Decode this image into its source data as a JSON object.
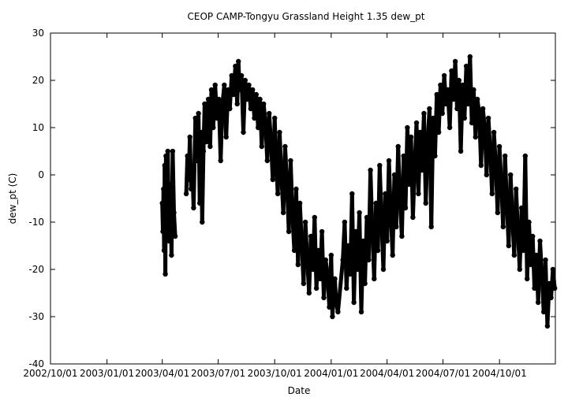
{
  "chart_data": {
    "type": "scatter",
    "title": "CEOP CAMP-Tongyu Grassland Height 1.35 dew_pt",
    "xlabel": "Date",
    "ylabel": "dew_pt (C)",
    "xlim": [
      "2002-10-01",
      "2004-12-31"
    ],
    "ylim": [
      -40,
      30
    ],
    "x_tick_labels": [
      "2002/10/01",
      "2003/01/01",
      "2003/04/01",
      "2003/07/01",
      "2003/10/01",
      "2004/01/01",
      "2004/04/01",
      "2004/07/01",
      "2004/10/01"
    ],
    "y_tick_labels": [
      "-40",
      "-30",
      "-20",
      "-10",
      "0",
      "10",
      "20",
      "30"
    ],
    "grid": false,
    "legend": "none",
    "marker_color": "#000000",
    "series": [
      {
        "points": [
          [
            "2003-04-01",
            -6
          ],
          [
            "2003-04-02",
            -12
          ],
          [
            "2003-04-03",
            -3
          ],
          [
            "2003-04-04",
            -16
          ],
          [
            "2003-04-05",
            2
          ],
          [
            "2003-04-06",
            -21
          ],
          [
            "2003-04-07",
            4
          ],
          [
            "2003-04-08",
            -9
          ],
          [
            "2003-04-10",
            5
          ],
          [
            "2003-04-12",
            -14
          ],
          [
            "2003-04-14",
            -2
          ],
          [
            "2003-04-16",
            -17
          ],
          [
            "2003-04-18",
            5
          ],
          [
            "2003-04-20",
            -8
          ],
          [
            "2003-04-22",
            -13
          ],
          [
            "2003-05-10",
            -4
          ],
          [
            "2003-05-12",
            4
          ],
          [
            "2003-05-14",
            -1
          ],
          [
            "2003-05-16",
            8
          ],
          [
            "2003-05-18",
            -3
          ],
          [
            "2003-05-20",
            1
          ],
          [
            "2003-05-22",
            -7
          ],
          [
            "2003-05-25",
            12
          ],
          [
            "2003-05-28",
            3
          ],
          [
            "2003-05-30",
            13
          ],
          [
            "2003-06-01",
            -6
          ],
          [
            "2003-06-03",
            9
          ],
          [
            "2003-06-05",
            -10
          ],
          [
            "2003-06-07",
            5
          ],
          [
            "2003-06-09",
            15
          ],
          [
            "2003-06-12",
            7
          ],
          [
            "2003-06-15",
            16
          ],
          [
            "2003-06-18",
            6
          ],
          [
            "2003-06-20",
            18
          ],
          [
            "2003-06-23",
            10
          ],
          [
            "2003-06-26",
            19
          ],
          [
            "2003-06-29",
            12
          ],
          [
            "2003-07-02",
            16
          ],
          [
            "2003-07-05",
            3
          ],
          [
            "2003-07-08",
            15
          ],
          [
            "2003-07-11",
            19
          ],
          [
            "2003-07-14",
            8
          ],
          [
            "2003-07-17",
            18
          ],
          [
            "2003-07-20",
            14
          ],
          [
            "2003-07-23",
            21
          ],
          [
            "2003-07-26",
            17
          ],
          [
            "2003-07-29",
            23
          ],
          [
            "2003-08-01",
            15
          ],
          [
            "2003-08-03",
            24
          ],
          [
            "2003-08-05",
            18
          ],
          [
            "2003-08-08",
            21
          ],
          [
            "2003-08-11",
            9
          ],
          [
            "2003-08-14",
            20
          ],
          [
            "2003-08-17",
            16
          ],
          [
            "2003-08-20",
            19
          ],
          [
            "2003-08-23",
            14
          ],
          [
            "2003-08-26",
            18
          ],
          [
            "2003-08-29",
            12
          ],
          [
            "2003-09-01",
            17
          ],
          [
            "2003-09-04",
            10
          ],
          [
            "2003-09-07",
            16
          ],
          [
            "2003-09-10",
            6
          ],
          [
            "2003-09-13",
            15
          ],
          [
            "2003-09-16",
            11
          ],
          [
            "2003-09-19",
            3
          ],
          [
            "2003-09-22",
            13
          ],
          [
            "2003-09-25",
            7
          ],
          [
            "2003-09-28",
            -1
          ],
          [
            "2003-10-01",
            12
          ],
          [
            "2003-10-03",
            4
          ],
          [
            "2003-10-06",
            -4
          ],
          [
            "2003-10-09",
            9
          ],
          [
            "2003-10-12",
            0
          ],
          [
            "2003-10-15",
            -8
          ],
          [
            "2003-10-18",
            6
          ],
          [
            "2003-10-21",
            -2
          ],
          [
            "2003-10-24",
            -12
          ],
          [
            "2003-10-27",
            3
          ],
          [
            "2003-10-30",
            -9
          ],
          [
            "2003-11-02",
            -16
          ],
          [
            "2003-11-05",
            -3
          ],
          [
            "2003-11-08",
            -19
          ],
          [
            "2003-11-11",
            -6
          ],
          [
            "2003-11-14",
            -14
          ],
          [
            "2003-11-17",
            -23
          ],
          [
            "2003-11-20",
            -10
          ],
          [
            "2003-11-23",
            -18
          ],
          [
            "2003-11-26",
            -25
          ],
          [
            "2003-11-29",
            -13
          ],
          [
            "2003-12-02",
            -20
          ],
          [
            "2003-12-05",
            -9
          ],
          [
            "2003-12-08",
            -24
          ],
          [
            "2003-12-11",
            -16
          ],
          [
            "2003-12-14",
            -22
          ],
          [
            "2003-12-17",
            -12
          ],
          [
            "2003-12-20",
            -26
          ],
          [
            "2003-12-23",
            -18
          ],
          [
            "2003-12-26",
            -21
          ],
          [
            "2003-12-29",
            -28
          ],
          [
            "2004-01-01",
            -17
          ],
          [
            "2004-01-03",
            -30
          ],
          [
            "2004-01-05",
            -25
          ],
          [
            "2004-01-07",
            -22
          ],
          [
            "2004-01-09",
            -27
          ],
          [
            "2004-01-12",
            -29
          ],
          [
            "2004-01-20",
            -18
          ],
          [
            "2004-01-23",
            -10
          ],
          [
            "2004-01-26",
            -24
          ],
          [
            "2004-01-29",
            -15
          ],
          [
            "2004-02-01",
            -21
          ],
          [
            "2004-02-04",
            -4
          ],
          [
            "2004-02-07",
            -27
          ],
          [
            "2004-02-10",
            -12
          ],
          [
            "2004-02-13",
            -20
          ],
          [
            "2004-02-16",
            -8
          ],
          [
            "2004-02-19",
            -29
          ],
          [
            "2004-02-22",
            -14
          ],
          [
            "2004-02-25",
            -23
          ],
          [
            "2004-02-28",
            -9
          ],
          [
            "2004-03-02",
            -18
          ],
          [
            "2004-03-05",
            1
          ],
          [
            "2004-03-08",
            -12
          ],
          [
            "2004-03-11",
            -22
          ],
          [
            "2004-03-14",
            -6
          ],
          [
            "2004-03-17",
            -16
          ],
          [
            "2004-03-20",
            2
          ],
          [
            "2004-03-23",
            -10
          ],
          [
            "2004-03-26",
            -20
          ],
          [
            "2004-03-29",
            -4
          ],
          [
            "2004-04-01",
            -14
          ],
          [
            "2004-04-04",
            3
          ],
          [
            "2004-04-07",
            -8
          ],
          [
            "2004-04-10",
            -17
          ],
          [
            "2004-04-13",
            0
          ],
          [
            "2004-04-16",
            -11
          ],
          [
            "2004-04-19",
            6
          ],
          [
            "2004-04-22",
            -5
          ],
          [
            "2004-04-25",
            -13
          ],
          [
            "2004-04-28",
            4
          ],
          [
            "2004-05-01",
            -7
          ],
          [
            "2004-05-04",
            10
          ],
          [
            "2004-05-07",
            -2
          ],
          [
            "2004-05-10",
            8
          ],
          [
            "2004-05-13",
            -9
          ],
          [
            "2004-05-16",
            2
          ],
          [
            "2004-05-19",
            11
          ],
          [
            "2004-05-22",
            -4
          ],
          [
            "2004-05-25",
            9
          ],
          [
            "2004-05-28",
            1
          ],
          [
            "2004-05-31",
            13
          ],
          [
            "2004-06-03",
            -6
          ],
          [
            "2004-06-06",
            7
          ],
          [
            "2004-06-09",
            14
          ],
          [
            "2004-06-12",
            -11
          ],
          [
            "2004-06-15",
            12
          ],
          [
            "2004-06-18",
            4
          ],
          [
            "2004-06-21",
            17
          ],
          [
            "2004-06-24",
            9
          ],
          [
            "2004-06-27",
            19
          ],
          [
            "2004-06-30",
            13
          ],
          [
            "2004-07-03",
            21
          ],
          [
            "2004-07-06",
            15
          ],
          [
            "2004-07-09",
            18
          ],
          [
            "2004-07-12",
            10
          ],
          [
            "2004-07-15",
            22
          ],
          [
            "2004-07-18",
            16
          ],
          [
            "2004-07-21",
            24
          ],
          [
            "2004-07-24",
            14
          ],
          [
            "2004-07-27",
            20
          ],
          [
            "2004-07-30",
            5
          ],
          [
            "2004-08-02",
            19
          ],
          [
            "2004-08-05",
            12
          ],
          [
            "2004-08-08",
            23
          ],
          [
            "2004-08-11",
            15
          ],
          [
            "2004-08-14",
            25
          ],
          [
            "2004-08-17",
            11
          ],
          [
            "2004-08-20",
            18
          ],
          [
            "2004-08-23",
            8
          ],
          [
            "2004-08-26",
            16
          ],
          [
            "2004-08-29",
            13
          ],
          [
            "2004-09-01",
            2
          ],
          [
            "2004-09-04",
            14
          ],
          [
            "2004-09-07",
            10
          ],
          [
            "2004-09-10",
            0
          ],
          [
            "2004-09-13",
            12
          ],
          [
            "2004-09-16",
            5
          ],
          [
            "2004-09-19",
            -4
          ],
          [
            "2004-09-22",
            9
          ],
          [
            "2004-09-25",
            2
          ],
          [
            "2004-09-28",
            -8
          ],
          [
            "2004-10-01",
            6
          ],
          [
            "2004-10-04",
            -2
          ],
          [
            "2004-10-07",
            -11
          ],
          [
            "2004-10-10",
            4
          ],
          [
            "2004-10-13",
            -6
          ],
          [
            "2004-10-16",
            -15
          ],
          [
            "2004-10-19",
            0
          ],
          [
            "2004-10-22",
            -9
          ],
          [
            "2004-10-25",
            -17
          ],
          [
            "2004-10-28",
            -3
          ],
          [
            "2004-10-31",
            -12
          ],
          [
            "2004-11-03",
            -20
          ],
          [
            "2004-11-06",
            -7
          ],
          [
            "2004-11-09",
            -16
          ],
          [
            "2004-11-12",
            4
          ],
          [
            "2004-11-15",
            -22
          ],
          [
            "2004-11-18",
            -10
          ],
          [
            "2004-11-21",
            -19
          ],
          [
            "2004-11-24",
            -13
          ],
          [
            "2004-11-27",
            -24
          ],
          [
            "2004-11-30",
            -17
          ],
          [
            "2004-12-03",
            -27
          ],
          [
            "2004-12-06",
            -14
          ],
          [
            "2004-12-09",
            -21
          ],
          [
            "2004-12-12",
            -29
          ],
          [
            "2004-12-15",
            -18
          ],
          [
            "2004-12-18",
            -32
          ],
          [
            "2004-12-21",
            -23
          ],
          [
            "2004-12-24",
            -26
          ],
          [
            "2004-12-27",
            -20
          ],
          [
            "2004-12-30",
            -24
          ]
        ]
      }
    ]
  }
}
